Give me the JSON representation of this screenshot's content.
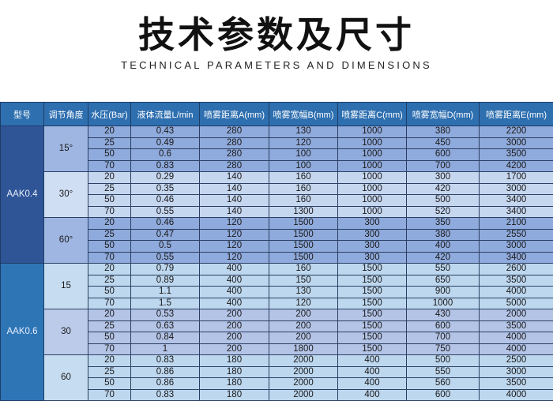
{
  "title": "技术参数及尺寸",
  "subtitle": "TECHNICAL PARAMETERS AND DIMENSIONS",
  "table": {
    "headers": [
      "型号",
      "调节角度",
      "水压(Bar)",
      "液体流量L/min",
      "喷雾距离A(mm)",
      "喷雾宽幅B(mm)",
      "喷雾距离C(mm)",
      "喷雾宽幅D(mm)",
      "喷雾距离E(mm)"
    ],
    "models": [
      {
        "name": "AAK0.4",
        "color": "#2f5597",
        "groups": [
          {
            "angle": "15°",
            "color": "#8faadc",
            "angle_color": "#9fb6e2",
            "rows": [
              [
                "20",
                "0.43",
                "280",
                "130",
                "1000",
                "380",
                "2200"
              ],
              [
                "25",
                "0.49",
                "280",
                "120",
                "1000",
                "450",
                "3000"
              ],
              [
                "50",
                "0.6",
                "280",
                "100",
                "1000",
                "600",
                "3500"
              ],
              [
                "70",
                "0.83",
                "280",
                "100",
                "1000",
                "700",
                "4200"
              ]
            ]
          },
          {
            "angle": "30°",
            "color": "#c5d6ef",
            "angle_color": "#cfdef3",
            "rows": [
              [
                "20",
                "0.29",
                "140",
                "160",
                "1000",
                "300",
                "1700"
              ],
              [
                "25",
                "0.35",
                "140",
                "160",
                "1000",
                "420",
                "3000"
              ],
              [
                "50",
                "0.46",
                "140",
                "160",
                "1000",
                "500",
                "3400"
              ],
              [
                "70",
                "0.55",
                "140",
                "1300",
                "1000",
                "520",
                "3400"
              ]
            ]
          },
          {
            "angle": "60°",
            "color": "#8faadc",
            "angle_color": "#9fb6e2",
            "rows": [
              [
                "20",
                "0.46",
                "120",
                "1500",
                "300",
                "350",
                "2100"
              ],
              [
                "25",
                "0.47",
                "120",
                "1500",
                "300",
                "380",
                "2550"
              ],
              [
                "50",
                "0.5",
                "120",
                "1500",
                "300",
                "400",
                "3000"
              ],
              [
                "70",
                "0.55",
                "120",
                "1500",
                "300",
                "420",
                "3400"
              ]
            ]
          }
        ]
      },
      {
        "name": "AAK0.6",
        "color": "#2e75b6",
        "groups": [
          {
            "angle": "15",
            "color": "#bdd7ee",
            "angle_color": "#c6dcf0",
            "rows": [
              [
                "20",
                "0.79",
                "400",
                "160",
                "1500",
                "550",
                "2600"
              ],
              [
                "25",
                "0.89",
                "400",
                "150",
                "1500",
                "650",
                "3500"
              ],
              [
                "50",
                "1.1",
                "400",
                "130",
                "1500",
                "900",
                "4000"
              ],
              [
                "70",
                "1.5",
                "400",
                "120",
                "1500",
                "1000",
                "5000"
              ]
            ]
          },
          {
            "angle": "30",
            "color": "#b4c4e7",
            "angle_color": "#bccbea",
            "rows": [
              [
                "20",
                "0.53",
                "200",
                "200",
                "1500",
                "430",
                "2000"
              ],
              [
                "25",
                "0.63",
                "200",
                "200",
                "1500",
                "600",
                "3500"
              ],
              [
                "50",
                "0.84",
                "200",
                "200",
                "1500",
                "700",
                "4000"
              ],
              [
                "70",
                "1",
                "200",
                "1800",
                "1500",
                "750",
                "4000"
              ]
            ]
          },
          {
            "angle": "60",
            "color": "#bdd7ee",
            "angle_color": "#c6dcf0",
            "rows": [
              [
                "20",
                "0.83",
                "180",
                "2000",
                "400",
                "500",
                "2500"
              ],
              [
                "25",
                "0.86",
                "180",
                "2000",
                "400",
                "550",
                "3000"
              ],
              [
                "50",
                "0.86",
                "180",
                "2000",
                "400",
                "560",
                "3500"
              ],
              [
                "70",
                "0.83",
                "180",
                "2000",
                "400",
                "600",
                "4000"
              ]
            ]
          }
        ]
      }
    ]
  }
}
